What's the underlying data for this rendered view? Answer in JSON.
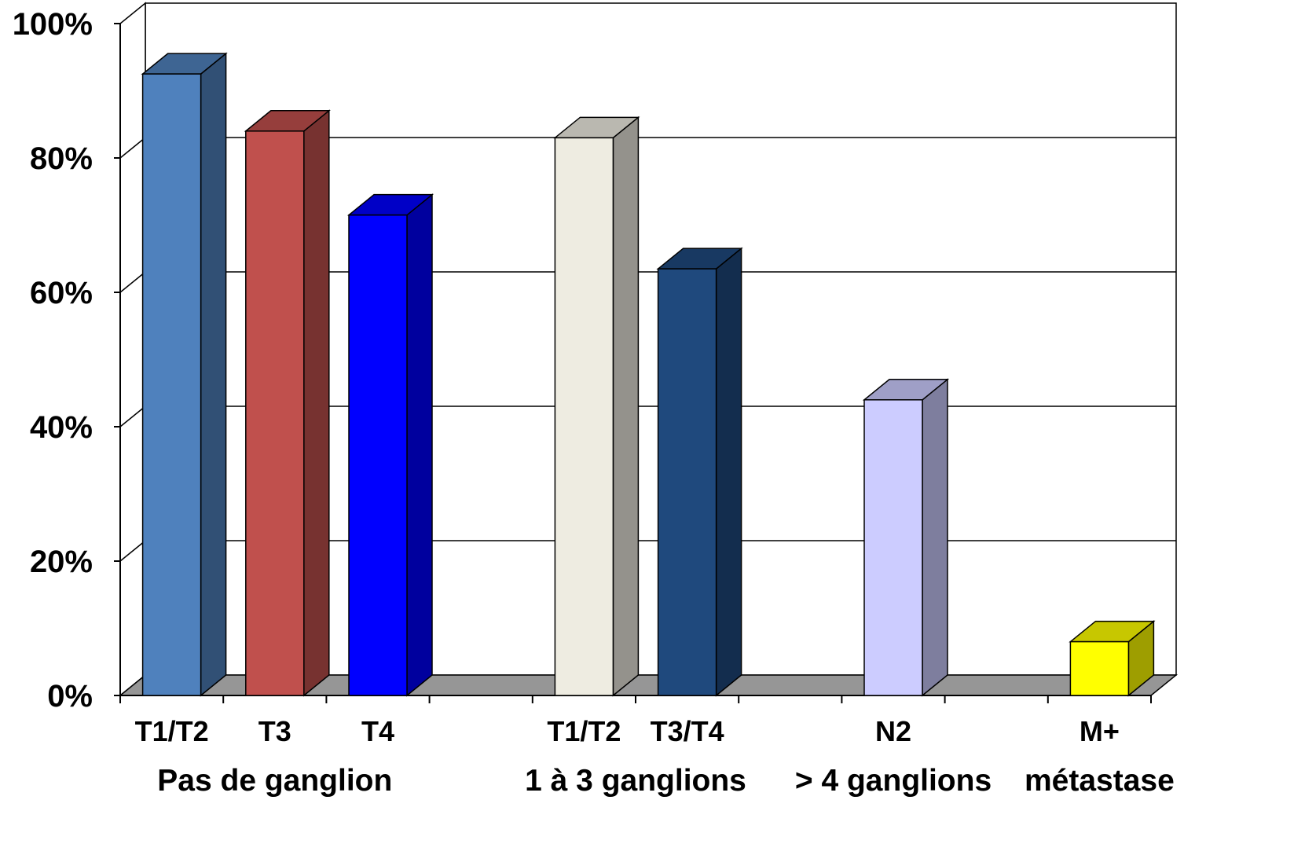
{
  "chart_data": {
    "type": "bar",
    "style": "3d-column",
    "ylim": [
      0,
      100
    ],
    "yticks": [
      "0%",
      "20%",
      "40%",
      "60%",
      "80%",
      "100%"
    ],
    "grid": true,
    "legend": "none",
    "bars": [
      {
        "label": "T1/T2",
        "value": 92.5,
        "slot": 0,
        "color": "#4f81bd"
      },
      {
        "label": "T3",
        "value": 84,
        "slot": 1,
        "color": "#c0504d"
      },
      {
        "label": "T4",
        "value": 71.5,
        "slot": 2,
        "color": "#0000ff"
      },
      {
        "label": "T1/T2",
        "value": 83,
        "slot": 4,
        "color": "#eeece1"
      },
      {
        "label": "T3/T4",
        "value": 63.5,
        "slot": 5,
        "color": "#1f497d"
      },
      {
        "label": "N2",
        "value": 44,
        "slot": 7,
        "color": "#ccccff"
      },
      {
        "label": "M+",
        "value": 8,
        "slot": 9,
        "color": "#ffff00"
      }
    ],
    "groups": [
      {
        "label": "Pas de ganglion",
        "slots": [
          0,
          2
        ]
      },
      {
        "label": "1 à 3 ganglions",
        "slots": [
          4,
          5
        ]
      },
      {
        "label": "> 4 ganglions",
        "slots": [
          7,
          7
        ]
      },
      {
        "label": "métastase",
        "slots": [
          9,
          9
        ]
      }
    ]
  }
}
